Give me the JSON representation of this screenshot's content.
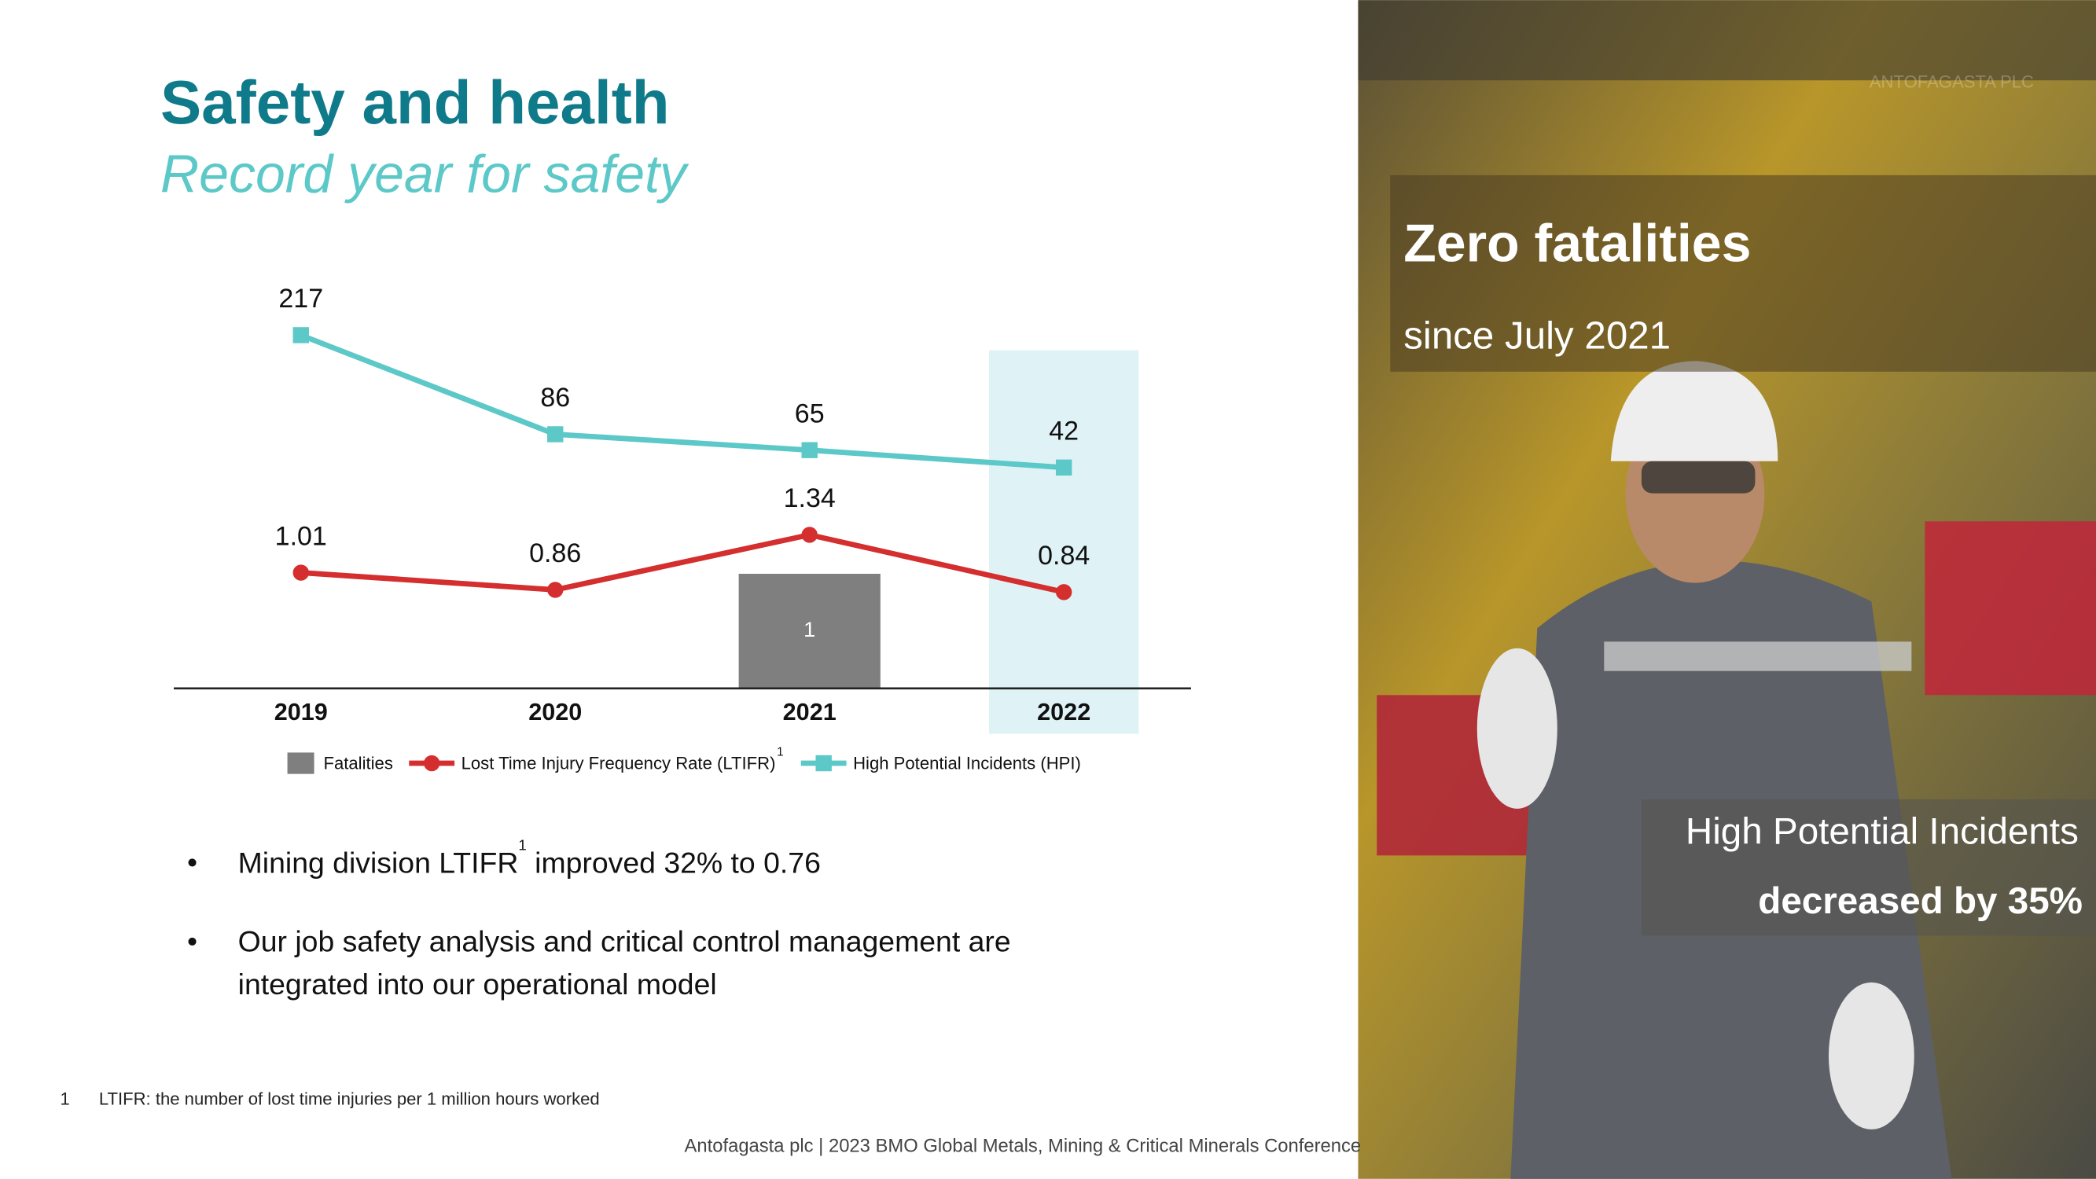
{
  "title": "Safety and health",
  "subtitle": "Record year for safety",
  "chart_data": {
    "type": "line",
    "categories": [
      "2019",
      "2020",
      "2021",
      "2022"
    ],
    "highlight": "2022",
    "ylim": [
      0,
      3.3
    ],
    "y2lim": [
      -250,
      250
    ],
    "series": [
      {
        "name": "Fatalities",
        "type": "bar",
        "color": "#7f7f7f",
        "values": [
          0,
          0,
          1,
          0
        ]
      },
      {
        "name": "Lost Time Injury Frequency Rate (LTIFR)",
        "footnote_marker": "1",
        "type": "line",
        "marker": "circle",
        "color": "#d42e2e",
        "values": [
          1.01,
          0.86,
          1.34,
          0.84
        ]
      },
      {
        "name": "High Potential Incidents (HPI)",
        "type": "line",
        "marker": "square",
        "axis": "y2",
        "color": "#5cc8c8",
        "values": [
          217,
          86,
          65,
          42
        ]
      }
    ]
  },
  "bullets": [
    {
      "parts": [
        "Mining division LTIFR",
        "1",
        " improved 32% to 0.76"
      ]
    },
    {
      "lines": [
        "Our job safety analysis and critical control management are",
        "integrated into our operational model"
      ]
    }
  ],
  "footnote": {
    "number": "1",
    "text": "LTIFR: the number of lost time injuries per 1 million hours worked"
  },
  "footer": "Antofagasta plc | 2023 BMO Global Metals, Mining & Critical Minerals Conference",
  "panel": {
    "watermark": "ANTOFAGASTA PLC",
    "headline": "Zero fatalities",
    "subline": "since July 2021",
    "stat_line1": "High Potential Incidents",
    "stat_line2": "decreased by 35%"
  }
}
